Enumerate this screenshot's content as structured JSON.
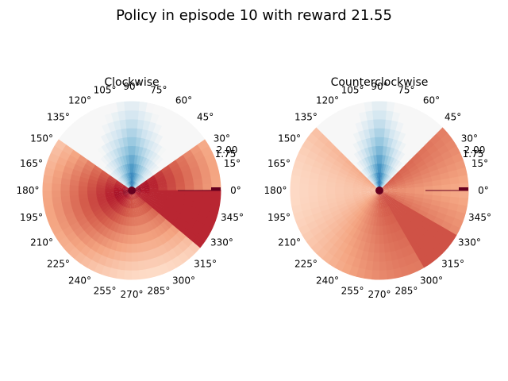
{
  "title": "Policy in episode 10 with reward 21.55",
  "chart_data": [
    {
      "type": "heatmap",
      "projection": "polar",
      "title": "Clockwise",
      "theta_tick_labels": [
        "0°",
        "15°",
        "30°",
        "45°",
        "60°",
        "75°",
        "90°",
        "105°",
        "120°",
        "135°",
        "150°",
        "165°",
        "180°",
        "195°",
        "210°",
        "225°",
        "240°",
        "255°",
        "270°",
        "285°",
        "300°",
        "315°",
        "330°",
        "345°"
      ],
      "r_tick_labels": [
        "2.00",
        "1.75"
      ],
      "colormap": "RdBu",
      "low_color": "#053061",
      "high_color": "#67001f",
      "grid": false
    },
    {
      "type": "heatmap",
      "projection": "polar",
      "title": "Counterclockwise",
      "theta_tick_labels": [
        "0°",
        "15°",
        "30°",
        "45°",
        "60°",
        "75°",
        "90°",
        "105°",
        "120°",
        "135°",
        "150°",
        "165°",
        "180°",
        "195°",
        "210°",
        "225°",
        "240°",
        "255°",
        "270°",
        "285°",
        "300°",
        "315°",
        "330°",
        "345°"
      ],
      "r_tick_labels": [
        "2.00",
        "1.75"
      ],
      "colormap": "RdBu",
      "low_color": "#053061",
      "high_color": "#67001f",
      "grid": false
    }
  ]
}
